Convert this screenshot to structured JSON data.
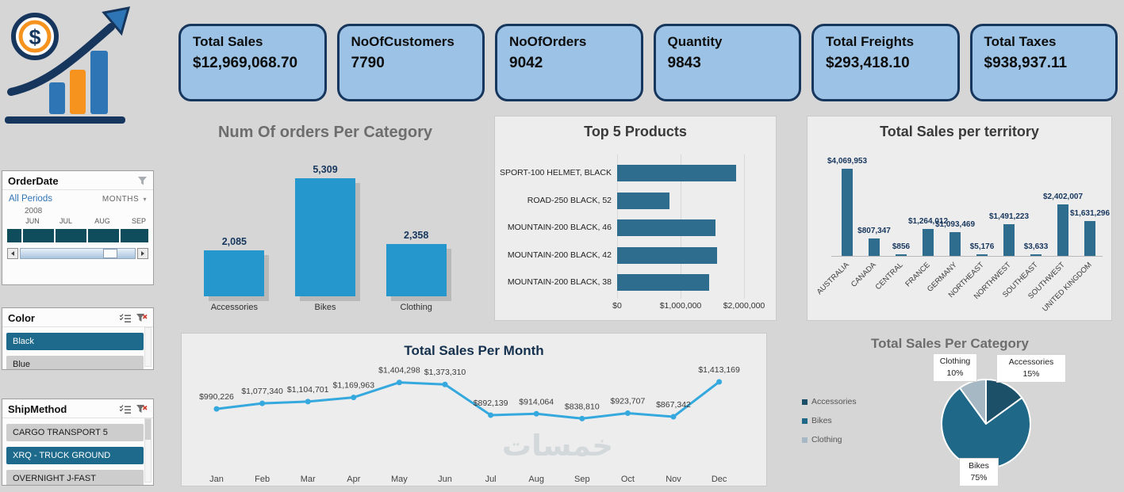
{
  "page": {
    "background": "#d6d6d6",
    "watermark": "خمسات"
  },
  "kpis": [
    {
      "title": "Total Sales",
      "value": "$12,969,068.70"
    },
    {
      "title": "NoOfCustomers",
      "value": "7790"
    },
    {
      "title": "NoOfOrders",
      "value": "9042"
    },
    {
      "title": "Quantity",
      "value": "9843"
    },
    {
      "title": "Total Freights",
      "value": "$293,418.10"
    },
    {
      "title": "Total Taxes",
      "value": "$938,937.11"
    }
  ],
  "slicers": {
    "order_date": {
      "title": "OrderDate",
      "period": "All Periods",
      "granularity": "MONTHS",
      "year": "2008",
      "months": [
        "JUN",
        "JUL",
        "AUG",
        "SEP"
      ]
    },
    "color": {
      "title": "Color",
      "items": [
        {
          "label": "Black",
          "selected": true
        },
        {
          "label": "Blue",
          "selected": false
        }
      ]
    },
    "ship_method": {
      "title": "ShipMethod",
      "items": [
        {
          "label": "CARGO TRANSPORT 5",
          "selected": false
        },
        {
          "label": "XRQ - TRUCK GROUND",
          "selected": true
        },
        {
          "label": "OVERNIGHT J-FAST",
          "selected": false
        }
      ]
    }
  },
  "colors": {
    "kpi_fill": "#9cc3e5",
    "kpi_border": "#17365d",
    "selected_item": "#1e6a8c",
    "timeline": "#0f4c5c"
  },
  "chart_data": [
    {
      "id": "orders_per_category",
      "type": "bar",
      "title": "Num Of orders Per Category",
      "categories": [
        "Accessories",
        "Bikes",
        "Clothing"
      ],
      "values": [
        2085,
        5309,
        2358
      ],
      "labels": [
        "2,085",
        "5,309",
        "2,358"
      ],
      "ylim": [
        0,
        5309
      ],
      "bar_color": "#2697cd"
    },
    {
      "id": "top5_products",
      "type": "bar",
      "orientation": "horizontal",
      "title": "Top 5 Products",
      "categories": [
        "SPORT-100 HELMET, BLACK",
        "ROAD-250 BLACK, 52",
        "MOUNTAIN-200 BLACK, 46",
        "MOUNTAIN-200 BLACK, 42",
        "MOUNTAIN-200 BLACK, 38"
      ],
      "values": [
        1880000,
        830000,
        1545000,
        1575000,
        1450000
      ],
      "xticks": [
        "$0",
        "$1,000,000",
        "$2,000,000"
      ],
      "xlim": [
        0,
        2000000
      ],
      "bar_color": "#2e6d8e"
    },
    {
      "id": "sales_per_territory",
      "type": "bar",
      "title": "Total Sales per territory",
      "categories": [
        "AUSTRALIA",
        "CANADA",
        "CENTRAL",
        "FRANCE",
        "GERMANY",
        "NORTHEAST",
        "NORTHWEST",
        "SOUTHEAST",
        "SOUTHWEST",
        "UNITED KINGDOM"
      ],
      "values": [
        4069953,
        807347,
        856,
        1264012,
        1093469,
        5176,
        1491223,
        3633,
        2402007,
        1631296
      ],
      "labels": [
        "$4,069,953",
        "$807,347",
        "$856",
        "$1,264,012",
        "$1,093,469",
        "$5,176",
        "$1,491,223",
        "$3,633",
        "$2,402,007",
        "$1,631,296"
      ],
      "ylim": [
        0,
        4069953
      ],
      "bar_color": "#2e6d8e"
    },
    {
      "id": "sales_per_month",
      "type": "line",
      "title": "Total Sales Per Month",
      "x": [
        "Jan",
        "Feb",
        "Mar",
        "Apr",
        "May",
        "Jun",
        "Jul",
        "Aug",
        "Sep",
        "Oct",
        "Nov",
        "Dec"
      ],
      "values": [
        990226,
        1077340,
        1104701,
        1169963,
        1404298,
        1373310,
        892139,
        914064,
        838810,
        923707,
        867342,
        1413169
      ],
      "labels": [
        "$990,226",
        "$1,077,340",
        "$1,104,701",
        "$1,169,963",
        "$1,404,298",
        "$1,373,310",
        "$892,139",
        "$914,064",
        "$838,810",
        "$923,707",
        "$867,342",
        "$1,413,169"
      ],
      "line_color": "#35a9de"
    },
    {
      "id": "sales_per_category_pie",
      "type": "pie",
      "title": "Total Sales  Per Category",
      "categories": [
        "Accessories",
        "Bikes",
        "Clothing"
      ],
      "values": [
        15,
        75,
        10
      ],
      "labels": [
        {
          "name": "Accessories",
          "pct": "15%"
        },
        {
          "name": "Bikes",
          "pct": "75%"
        },
        {
          "name": "Clothing",
          "pct": "10%"
        }
      ],
      "colors": [
        "#1c4f68",
        "#1f6888",
        "#a6b8c3"
      ],
      "legend": [
        "Accessories",
        "Bikes",
        "Clothing"
      ],
      "legend_colors": [
        "#1c4f68",
        "#1f6888",
        "#a6b8c3"
      ]
    }
  ]
}
